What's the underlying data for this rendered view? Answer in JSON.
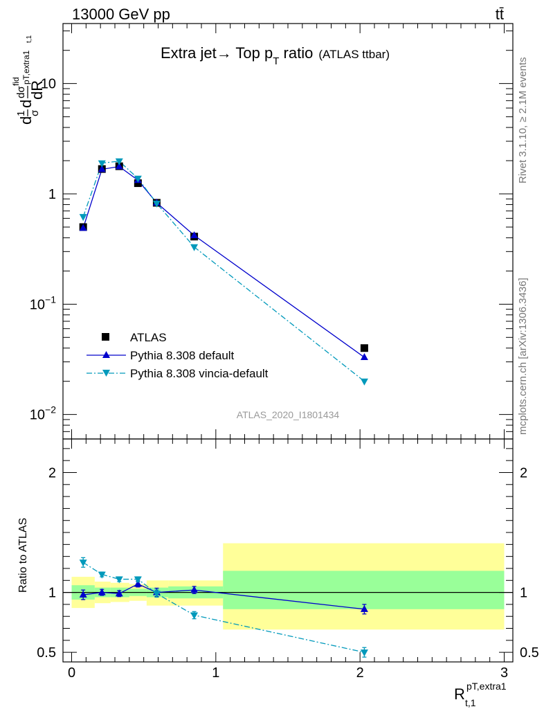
{
  "header": {
    "left": "13000 GeV pp",
    "right": "tt̄"
  },
  "side_labels": {
    "rivet": "Rivet 3.1.10, ≥ 2.1M events",
    "mcplots": "mcplots.cern.ch [arXiv:1306.3436]"
  },
  "chart_data": [
    {
      "type": "line",
      "title_main": "Extra jet→ Top p",
      "title_sub": "T",
      "title_tail": " ratio",
      "title_small": "(ATLAS ttbar)",
      "ylabel": "dσ/dR (normalized)",
      "yscale": "log",
      "ylim": [
        0.006,
        35
      ],
      "xlim": [
        -0.06,
        3.06
      ],
      "yticks": [
        {
          "value": 0.01,
          "base": "10",
          "exp": "−2"
        },
        {
          "value": 0.1,
          "base": "10",
          "exp": "−1"
        },
        {
          "value": 1,
          "base": "1",
          "exp": ""
        },
        {
          "value": 10,
          "base": "10",
          "exp": ""
        }
      ],
      "watermark": "ATLAS_2020_I1801434",
      "series": [
        {
          "name": "ATLAS",
          "marker": "square",
          "color": "#000000",
          "points": [
            {
              "x": 0.08,
              "y": 0.5
            },
            {
              "x": 0.21,
              "y": 1.68
            },
            {
              "x": 0.33,
              "y": 1.78
            },
            {
              "x": 0.46,
              "y": 1.25
            },
            {
              "x": 0.59,
              "y": 0.83
            },
            {
              "x": 0.85,
              "y": 0.41
            },
            {
              "x": 2.03,
              "y": 0.04
            }
          ]
        },
        {
          "name": "Pythia 8.308 default",
          "marker": "triangle-up",
          "color": "#0000cc",
          "line": "solid",
          "points": [
            {
              "x": 0.08,
              "y": 0.49
            },
            {
              "x": 0.21,
              "y": 1.67
            },
            {
              "x": 0.33,
              "y": 1.77
            },
            {
              "x": 0.46,
              "y": 1.33
            },
            {
              "x": 0.59,
              "y": 0.83
            },
            {
              "x": 0.85,
              "y": 0.42
            },
            {
              "x": 2.03,
              "y": 0.033
            }
          ]
        },
        {
          "name": "Pythia 8.308 vincia-default",
          "marker": "triangle-down",
          "color": "#0099bb",
          "line": "dashdot",
          "points": [
            {
              "x": 0.08,
              "y": 0.62
            },
            {
              "x": 0.21,
              "y": 1.9
            },
            {
              "x": 0.33,
              "y": 1.98
            },
            {
              "x": 0.46,
              "y": 1.38
            },
            {
              "x": 0.59,
              "y": 0.82
            },
            {
              "x": 0.85,
              "y": 0.33
            },
            {
              "x": 2.03,
              "y": 0.02
            }
          ]
        }
      ]
    },
    {
      "type": "line",
      "ylabel": "Ratio to ATLAS",
      "xlabel_main": "R",
      "xlabel_sub": "t,1",
      "xlabel_sup": "pT,extra1",
      "ylim": [
        0.42,
        2.28
      ],
      "xlim": [
        -0.06,
        3.06
      ],
      "xticks": [
        0,
        1,
        2,
        3
      ],
      "yticks": [
        0.5,
        1,
        2
      ],
      "bands": [
        {
          "x0": 0.0,
          "x1": 0.16,
          "green": [
            0.94,
            1.06
          ],
          "yellow": [
            0.87,
            1.13
          ]
        },
        {
          "x0": 0.16,
          "x1": 0.27,
          "green": [
            0.96,
            1.04
          ],
          "yellow": [
            0.91,
            1.09
          ]
        },
        {
          "x0": 0.27,
          "x1": 0.4,
          "green": [
            0.96,
            1.04
          ],
          "yellow": [
            0.92,
            1.08
          ]
        },
        {
          "x0": 0.4,
          "x1": 0.52,
          "green": [
            0.97,
            1.03
          ],
          "yellow": [
            0.93,
            1.07
          ]
        },
        {
          "x0": 0.52,
          "x1": 0.67,
          "green": [
            0.96,
            1.04
          ],
          "yellow": [
            0.89,
            1.1
          ]
        },
        {
          "x0": 0.67,
          "x1": 1.05,
          "green": [
            0.95,
            1.05
          ],
          "yellow": [
            0.89,
            1.1
          ]
        },
        {
          "x0": 1.05,
          "x1": 3.0,
          "green": [
            0.86,
            1.18
          ],
          "yellow": [
            0.69,
            1.41
          ]
        }
      ],
      "series": [
        {
          "name": "Pythia 8.308 default",
          "marker": "triangle-up",
          "color": "#0000cc",
          "line": "solid",
          "points": [
            {
              "x": 0.08,
              "y": 0.98,
              "err": 0.04
            },
            {
              "x": 0.21,
              "y": 1.0,
              "err": 0.025
            },
            {
              "x": 0.33,
              "y": 0.99,
              "err": 0.025
            },
            {
              "x": 0.46,
              "y": 1.07,
              "err": 0.025
            },
            {
              "x": 0.59,
              "y": 1.0,
              "err": 0.035
            },
            {
              "x": 0.85,
              "y": 1.02,
              "err": 0.03
            },
            {
              "x": 2.03,
              "y": 0.86,
              "err": 0.04
            }
          ]
        },
        {
          "name": "Pythia 8.308 vincia-default",
          "marker": "triangle-down",
          "color": "#0099bb",
          "line": "dashdot",
          "points": [
            {
              "x": 0.08,
              "y": 1.25,
              "err": 0.04
            },
            {
              "x": 0.21,
              "y": 1.15,
              "err": 0.02
            },
            {
              "x": 0.33,
              "y": 1.11,
              "err": 0.02
            },
            {
              "x": 0.46,
              "y": 1.11,
              "err": 0.02
            },
            {
              "x": 0.59,
              "y": 0.99,
              "err": 0.03
            },
            {
              "x": 0.85,
              "y": 0.81,
              "err": 0.03
            },
            {
              "x": 2.03,
              "y": 0.5,
              "err": 0.04
            }
          ]
        }
      ]
    }
  ],
  "colors": {
    "band_green": "#99ff99",
    "band_yellow": "#ffff99",
    "axis": "#000000",
    "watermark": "#999999",
    "side_text": "#777777"
  }
}
